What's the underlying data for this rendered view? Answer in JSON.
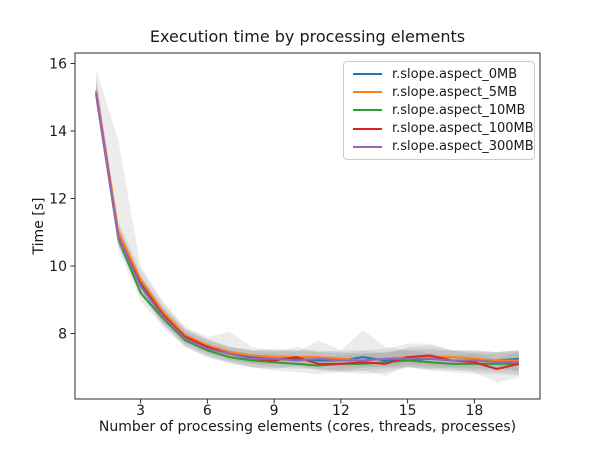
{
  "chart_data": {
    "type": "line",
    "title": "Execution time by processing elements",
    "xlabel": "Number of processing elements (cores, threads, processes)",
    "ylabel": "Time [s]",
    "x": [
      1,
      2,
      3,
      4,
      5,
      6,
      7,
      8,
      9,
      10,
      11,
      12,
      13,
      14,
      15,
      16,
      17,
      18,
      19,
      20
    ],
    "xticks": [
      3,
      6,
      9,
      12,
      15,
      18
    ],
    "yticks": [
      8,
      10,
      12,
      14,
      16
    ],
    "xlim": [
      0.05,
      20.95
    ],
    "ylim": [
      6.06,
      16.31
    ],
    "grid": false,
    "legend_position": "upper right",
    "band_color": "#7f7f7f",
    "band_alpha": 0.15,
    "axis_color": "#2b2b2b",
    "text_color": "#1a1a1a",
    "series": [
      {
        "name": "r.slope.aspect_0MB",
        "color": "#1f77b4",
        "values": [
          15.15,
          10.9,
          9.5,
          8.6,
          7.9,
          7.6,
          7.45,
          7.3,
          7.3,
          7.25,
          7.2,
          7.2,
          7.3,
          7.2,
          7.2,
          7.25,
          7.2,
          7.2,
          7.2,
          7.25
        ],
        "band_low": [
          14.8,
          10.6,
          9.2,
          8.3,
          7.7,
          7.4,
          7.2,
          7.1,
          7.0,
          7.0,
          6.95,
          6.9,
          7.0,
          7.0,
          7.0,
          6.95,
          7.0,
          6.95,
          6.95,
          6.9
        ],
        "band_high": [
          15.85,
          13.7,
          10.0,
          8.95,
          8.15,
          7.85,
          7.6,
          7.5,
          7.55,
          7.5,
          7.45,
          7.5,
          8.1,
          7.6,
          7.5,
          7.5,
          7.5,
          7.45,
          7.45,
          7.5
        ]
      },
      {
        "name": "r.slope.aspect_5MB",
        "color": "#ff7f0e",
        "values": [
          15.2,
          11.0,
          9.6,
          8.65,
          7.95,
          7.65,
          7.45,
          7.35,
          7.3,
          7.3,
          7.3,
          7.25,
          7.2,
          7.25,
          7.3,
          7.3,
          7.3,
          7.25,
          7.2,
          7.2
        ],
        "band_low": [
          14.9,
          10.7,
          9.3,
          8.4,
          7.75,
          7.45,
          7.25,
          7.1,
          7.1,
          7.1,
          7.1,
          7.0,
          7.0,
          7.0,
          7.1,
          7.05,
          7.0,
          7.0,
          6.95,
          6.9
        ],
        "band_high": [
          15.5,
          11.3,
          9.9,
          8.9,
          8.2,
          7.9,
          8.05,
          7.6,
          7.5,
          7.5,
          7.5,
          7.45,
          7.4,
          7.45,
          7.55,
          7.55,
          7.5,
          7.5,
          7.45,
          7.5
        ]
      },
      {
        "name": "r.slope.aspect_10MB",
        "color": "#2ca02c",
        "values": [
          15.1,
          10.8,
          9.2,
          8.45,
          7.8,
          7.5,
          7.3,
          7.2,
          7.15,
          7.1,
          7.05,
          7.1,
          7.1,
          7.15,
          7.2,
          7.15,
          7.1,
          7.1,
          7.1,
          7.1
        ],
        "band_low": [
          14.85,
          10.5,
          8.95,
          8.2,
          7.6,
          7.3,
          7.1,
          7.0,
          6.9,
          6.85,
          6.8,
          6.85,
          6.8,
          6.85,
          7.0,
          6.9,
          6.85,
          6.8,
          6.8,
          6.75
        ],
        "band_high": [
          15.4,
          11.1,
          9.5,
          8.7,
          8.0,
          7.7,
          7.5,
          7.4,
          7.4,
          7.35,
          7.3,
          7.35,
          7.4,
          7.45,
          7.5,
          7.4,
          7.35,
          7.4,
          7.4,
          7.45
        ]
      },
      {
        "name": "r.slope.aspect_100MB",
        "color": "#d62728",
        "values": [
          15.1,
          10.85,
          9.45,
          8.55,
          7.9,
          7.6,
          7.4,
          7.25,
          7.2,
          7.3,
          7.1,
          7.1,
          7.15,
          7.1,
          7.3,
          7.35,
          7.2,
          7.15,
          6.95,
          7.1
        ],
        "band_low": [
          14.9,
          10.6,
          9.2,
          8.3,
          7.65,
          7.35,
          7.15,
          7.0,
          6.95,
          7.05,
          6.9,
          6.85,
          6.9,
          6.75,
          7.05,
          7.0,
          6.95,
          6.85,
          6.55,
          6.7
        ],
        "band_high": [
          15.5,
          11.2,
          9.7,
          8.8,
          8.1,
          7.8,
          7.6,
          7.5,
          7.45,
          7.6,
          7.45,
          7.4,
          7.5,
          7.4,
          7.6,
          7.65,
          7.5,
          7.4,
          7.25,
          7.45
        ]
      },
      {
        "name": "r.slope.aspect_300MB",
        "color": "#9467bd",
        "values": [
          15.15,
          10.85,
          9.4,
          8.5,
          7.85,
          7.55,
          7.4,
          7.25,
          7.25,
          7.2,
          7.25,
          7.2,
          7.2,
          7.25,
          7.25,
          7.25,
          7.2,
          7.2,
          7.15,
          7.15
        ],
        "band_low": [
          14.9,
          10.6,
          9.15,
          8.25,
          7.6,
          7.3,
          7.15,
          7.0,
          7.0,
          6.95,
          6.95,
          6.9,
          6.9,
          6.95,
          7.0,
          6.95,
          6.9,
          6.9,
          6.85,
          6.8
        ],
        "band_high": [
          15.6,
          11.2,
          9.7,
          8.75,
          8.1,
          7.8,
          7.6,
          7.5,
          7.5,
          7.45,
          7.8,
          7.5,
          7.5,
          7.55,
          7.7,
          7.7,
          7.5,
          7.5,
          7.45,
          7.5
        ]
      }
    ]
  }
}
